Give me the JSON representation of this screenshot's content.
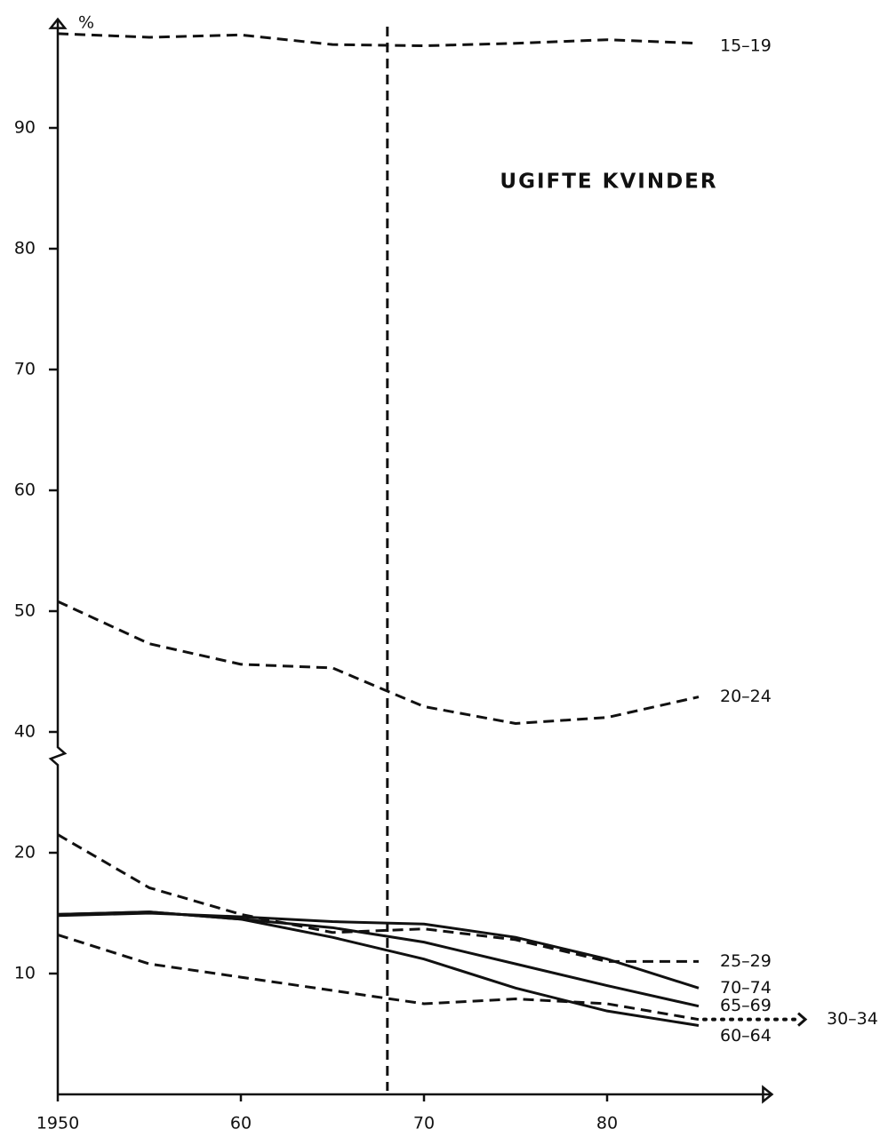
{
  "chart_data": {
    "type": "line",
    "title": "UGIFTE KVINDER",
    "y_label": "%",
    "x": [
      1950,
      1955,
      1960,
      1965,
      1970,
      1975,
      1980,
      1985
    ],
    "xlim": [
      1950,
      1989
    ],
    "xticks": [
      {
        "value": 1950,
        "label": "1950"
      },
      {
        "value": 1960,
        "label": "60"
      },
      {
        "value": 1970,
        "label": "70"
      },
      {
        "value": 1980,
        "label": "80"
      }
    ],
    "ylim": [
      0,
      99
    ],
    "ybreak": [
      28,
      38
    ],
    "yticks": [
      10,
      20,
      40,
      50,
      60,
      70,
      80,
      90
    ],
    "marker_x": 1968,
    "series": [
      {
        "name": "15–19",
        "color": "#111",
        "style": "dashed",
        "values": [
          97.8,
          97.5,
          97.7,
          96.9,
          96.8,
          97.0,
          97.3,
          97.0
        ]
      },
      {
        "name": "20–24",
        "color": "#111",
        "style": "dashed",
        "values": [
          50.8,
          47.3,
          45.6,
          45.3,
          42.1,
          40.7,
          41.2,
          42.9
        ]
      },
      {
        "name": "25–29",
        "color": "#111",
        "style": "dashed",
        "values": [
          21.5,
          17.1,
          14.9,
          13.4,
          13.7,
          12.8,
          11.0,
          11.0
        ]
      },
      {
        "name": "30–34",
        "color": "#111",
        "style": "dashed",
        "values": [
          13.2,
          10.8,
          9.7,
          8.6,
          7.5,
          7.9,
          7.5,
          6.2
        ]
      },
      {
        "name": "60–64",
        "color": "#111",
        "style": "solid",
        "values": [
          14.9,
          15.1,
          14.5,
          13.0,
          11.2,
          8.8,
          6.9,
          5.7
        ]
      },
      {
        "name": "65–69",
        "color": "#111",
        "style": "solid",
        "values": [
          14.9,
          15.1,
          14.5,
          13.8,
          12.6,
          10.8,
          9.0,
          7.3
        ]
      },
      {
        "name": "70–74",
        "color": "#111",
        "style": "solid",
        "values": [
          14.8,
          15.0,
          14.7,
          14.3,
          14.1,
          13.0,
          11.2,
          8.8
        ]
      }
    ]
  }
}
